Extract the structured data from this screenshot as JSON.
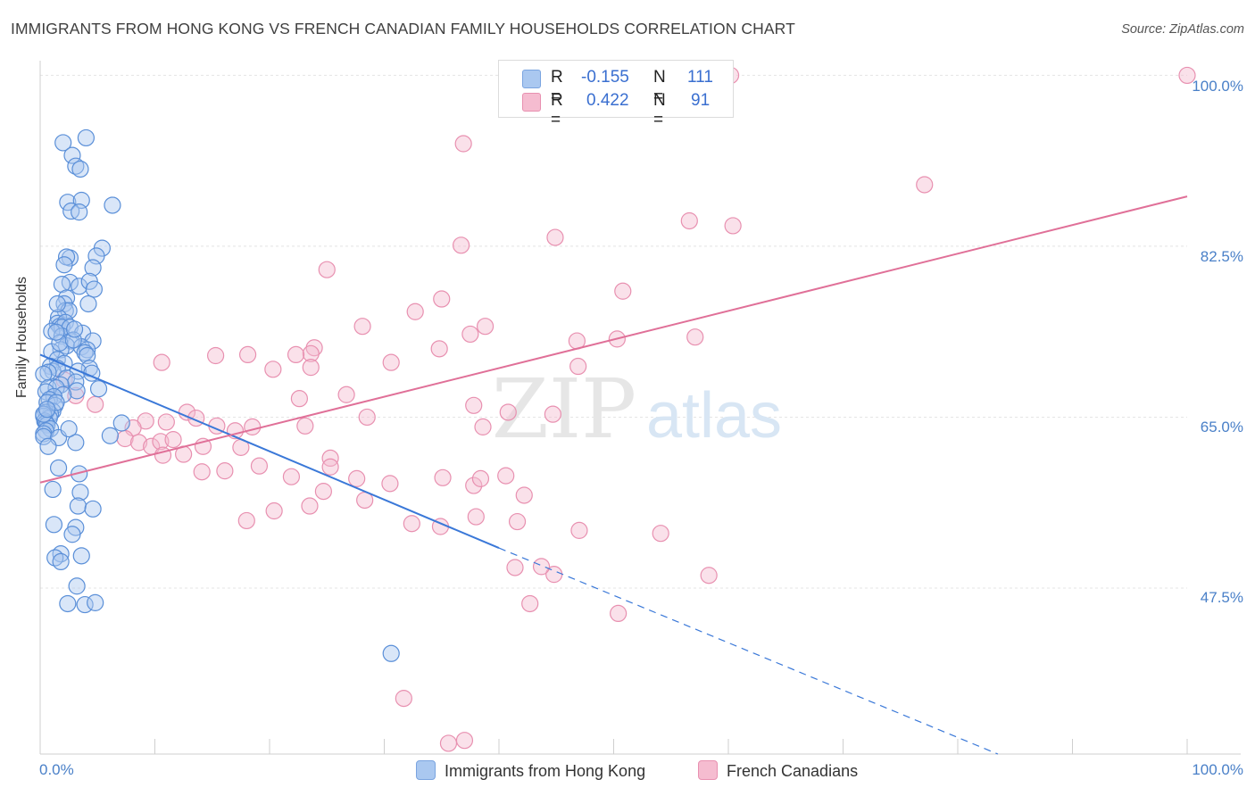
{
  "title": "IMMIGRANTS FROM HONG KONG VS FRENCH CANADIAN FAMILY HOUSEHOLDS CORRELATION CHART",
  "source": "Source: ZipAtlas.com",
  "watermark": {
    "zip": "ZIP",
    "atlas": "atlas"
  },
  "legend": {
    "r_label": "R =",
    "n_label": "N =",
    "series1": {
      "r": "-0.155",
      "n": "111"
    },
    "series2": {
      "r": "0.422",
      "n": "91"
    }
  },
  "colors": {
    "blue_fill": "#aac8f0",
    "blue_stroke": "#5a8fd8",
    "blue_line": "#3a78d8",
    "pink_fill": "#f5bcd0",
    "pink_stroke": "#e890b0",
    "pink_line": "#e07098",
    "tick_text": "#4a80c8"
  },
  "chart_data": {
    "type": "scatter",
    "title": "IMMIGRANTS FROM HONG KONG VS FRENCH CANADIAN FAMILY HOUSEHOLDS CORRELATION CHART",
    "xlabel": "",
    "ylabel": "Family Households",
    "xlim": [
      0,
      100
    ],
    "ylim": [
      30.5,
      101.5
    ],
    "x_tick_labels": [
      "0.0%",
      "100.0%"
    ],
    "y_ticks": [
      47.5,
      65.0,
      82.5,
      100.0
    ],
    "y_tick_labels": [
      "47.5%",
      "65.0%",
      "82.5%",
      "100.0%"
    ],
    "grid": true,
    "legend_position": "bottom",
    "series": [
      {
        "name": "Immigrants from Hong Kong",
        "color": "#5a8fd8",
        "trend": {
          "x": [
            0,
            40
          ],
          "y": [
            71.4,
            51.6
          ],
          "dashed_to": [
            83.5,
            30.5
          ]
        },
        "points": [
          [
            4.0,
            93.6
          ],
          [
            2.0,
            93.1
          ],
          [
            2.8,
            91.8
          ],
          [
            3.1,
            90.7
          ],
          [
            3.5,
            90.4
          ],
          [
            6.3,
            86.7
          ],
          [
            2.4,
            87.0
          ],
          [
            3.6,
            87.2
          ],
          [
            2.7,
            86.1
          ],
          [
            3.4,
            86.0
          ],
          [
            5.4,
            82.3
          ],
          [
            2.6,
            81.3
          ],
          [
            2.3,
            81.4
          ],
          [
            4.9,
            81.5
          ],
          [
            2.1,
            80.6
          ],
          [
            4.6,
            80.3
          ],
          [
            2.6,
            78.8
          ],
          [
            3.4,
            78.4
          ],
          [
            4.3,
            78.9
          ],
          [
            1.9,
            78.6
          ],
          [
            4.7,
            78.1
          ],
          [
            2.3,
            77.2
          ],
          [
            2.1,
            76.6
          ],
          [
            4.2,
            76.6
          ],
          [
            2.2,
            75.9
          ],
          [
            2.5,
            75.9
          ],
          [
            1.6,
            75.2
          ],
          [
            1.5,
            74.6
          ],
          [
            1.7,
            74.3
          ],
          [
            2.2,
            74.7
          ],
          [
            1.9,
            74.2
          ],
          [
            2.6,
            74.2
          ],
          [
            1.0,
            73.8
          ],
          [
            3.7,
            73.6
          ],
          [
            1.9,
            73.3
          ],
          [
            2.7,
            72.8
          ],
          [
            4.6,
            72.8
          ],
          [
            2.3,
            72.3
          ],
          [
            1.8,
            71.9
          ],
          [
            3.6,
            72.2
          ],
          [
            4.1,
            71.9
          ],
          [
            1.0,
            71.7
          ],
          [
            3.9,
            71.6
          ],
          [
            4.1,
            71.3
          ],
          [
            1.5,
            70.9
          ],
          [
            2.1,
            70.5
          ],
          [
            0.9,
            70.2
          ],
          [
            4.3,
            70.0
          ],
          [
            1.1,
            69.7
          ],
          [
            1.5,
            70.0
          ],
          [
            0.7,
            69.6
          ],
          [
            0.3,
            69.4
          ],
          [
            3.3,
            69.7
          ],
          [
            2.3,
            69.0
          ],
          [
            4.5,
            69.5
          ],
          [
            3.1,
            68.6
          ],
          [
            1.8,
            68.3
          ],
          [
            0.7,
            68.0
          ],
          [
            1.4,
            68.0
          ],
          [
            0.5,
            67.6
          ],
          [
            3.2,
            67.7
          ],
          [
            5.1,
            67.9
          ],
          [
            2.0,
            67.3
          ],
          [
            1.2,
            67.1
          ],
          [
            0.8,
            66.8
          ],
          [
            0.6,
            66.5
          ],
          [
            1.3,
            66.2
          ],
          [
            1.1,
            65.6
          ],
          [
            0.9,
            65.3
          ],
          [
            0.5,
            65.5
          ],
          [
            0.3,
            65.1
          ],
          [
            0.8,
            64.9
          ],
          [
            0.4,
            64.6
          ],
          [
            0.5,
            64.4
          ],
          [
            0.6,
            64.2
          ],
          [
            0.9,
            63.8
          ],
          [
            0.5,
            63.6
          ],
          [
            0.3,
            63.3
          ],
          [
            0.3,
            63.0
          ],
          [
            1.6,
            62.9
          ],
          [
            6.1,
            63.1
          ],
          [
            3.1,
            62.4
          ],
          [
            0.7,
            62.0
          ],
          [
            1.6,
            59.8
          ],
          [
            3.4,
            59.2
          ],
          [
            1.1,
            57.6
          ],
          [
            3.5,
            57.3
          ],
          [
            3.3,
            55.9
          ],
          [
            4.6,
            55.6
          ],
          [
            1.2,
            54.0
          ],
          [
            3.1,
            53.7
          ],
          [
            2.8,
            53.0
          ],
          [
            1.8,
            51.0
          ],
          [
            1.3,
            50.6
          ],
          [
            3.6,
            50.8
          ],
          [
            1.8,
            50.2
          ],
          [
            3.2,
            47.7
          ],
          [
            3.9,
            45.8
          ],
          [
            2.4,
            45.9
          ],
          [
            4.8,
            46.0
          ],
          [
            7.1,
            64.4
          ],
          [
            0.3,
            65.3
          ],
          [
            1.4,
            66.5
          ],
          [
            0.6,
            65.8
          ],
          [
            2.5,
            63.8
          ],
          [
            1.7,
            72.6
          ],
          [
            2.9,
            72.9
          ],
          [
            1.4,
            73.7
          ],
          [
            1.5,
            76.6
          ],
          [
            30.6,
            40.8
          ],
          [
            3.0,
            74.0
          ]
        ]
      },
      {
        "name": "French Canadians",
        "color": "#e890b0",
        "trend": {
          "x": [
            0,
            100
          ],
          "y": [
            58.3,
            87.6
          ]
        },
        "points": [
          [
            47.7,
            100.0
          ],
          [
            60.2,
            100.0
          ],
          [
            100.0,
            100.0
          ],
          [
            36.9,
            93.0
          ],
          [
            77.1,
            88.8
          ],
          [
            56.6,
            85.1
          ],
          [
            60.4,
            84.6
          ],
          [
            44.9,
            83.4
          ],
          [
            36.7,
            82.6
          ],
          [
            25.0,
            80.1
          ],
          [
            50.8,
            77.9
          ],
          [
            35.0,
            77.1
          ],
          [
            32.7,
            75.8
          ],
          [
            28.1,
            74.3
          ],
          [
            38.8,
            74.3
          ],
          [
            37.5,
            73.5
          ],
          [
            50.3,
            73.0
          ],
          [
            46.8,
            72.8
          ],
          [
            57.1,
            73.2
          ],
          [
            34.8,
            72.0
          ],
          [
            23.9,
            72.1
          ],
          [
            23.6,
            71.5
          ],
          [
            22.3,
            71.4
          ],
          [
            15.3,
            71.3
          ],
          [
            18.1,
            71.4
          ],
          [
            10.6,
            70.6
          ],
          [
            23.6,
            70.1
          ],
          [
            30.6,
            70.6
          ],
          [
            46.9,
            70.2
          ],
          [
            20.3,
            69.9
          ],
          [
            37.8,
            66.2
          ],
          [
            26.7,
            67.3
          ],
          [
            22.6,
            66.9
          ],
          [
            40.8,
            65.5
          ],
          [
            23.1,
            64.1
          ],
          [
            28.5,
            65.0
          ],
          [
            38.6,
            64.0
          ],
          [
            15.4,
            64.1
          ],
          [
            44.7,
            65.3
          ],
          [
            12.8,
            65.5
          ],
          [
            13.6,
            64.9
          ],
          [
            11.0,
            64.5
          ],
          [
            18.5,
            64.0
          ],
          [
            9.2,
            64.6
          ],
          [
            8.1,
            63.9
          ],
          [
            7.4,
            62.8
          ],
          [
            8.6,
            62.4
          ],
          [
            9.7,
            62.0
          ],
          [
            10.5,
            62.5
          ],
          [
            11.6,
            62.7
          ],
          [
            14.2,
            62.0
          ],
          [
            17.0,
            63.6
          ],
          [
            12.5,
            61.2
          ],
          [
            10.7,
            61.1
          ],
          [
            17.5,
            61.9
          ],
          [
            19.1,
            60.0
          ],
          [
            25.3,
            60.8
          ],
          [
            25.3,
            59.9
          ],
          [
            14.1,
            59.4
          ],
          [
            16.1,
            59.5
          ],
          [
            21.9,
            58.9
          ],
          [
            27.6,
            58.7
          ],
          [
            30.5,
            58.2
          ],
          [
            35.1,
            58.8
          ],
          [
            37.8,
            58.0
          ],
          [
            38.4,
            58.7
          ],
          [
            24.7,
            57.4
          ],
          [
            28.3,
            56.5
          ],
          [
            40.6,
            59.0
          ],
          [
            42.2,
            57.0
          ],
          [
            20.4,
            55.4
          ],
          [
            18.0,
            54.4
          ],
          [
            23.5,
            55.9
          ],
          [
            32.4,
            54.1
          ],
          [
            34.9,
            53.8
          ],
          [
            38.0,
            54.8
          ],
          [
            41.6,
            54.3
          ],
          [
            44.8,
            48.9
          ],
          [
            43.7,
            49.7
          ],
          [
            41.4,
            49.6
          ],
          [
            47.0,
            53.4
          ],
          [
            54.1,
            53.1
          ],
          [
            58.3,
            48.8
          ],
          [
            42.7,
            45.9
          ],
          [
            50.4,
            44.9
          ],
          [
            31.7,
            36.2
          ],
          [
            37.0,
            31.9
          ],
          [
            35.6,
            31.6
          ],
          [
            3.1,
            67.2
          ],
          [
            2.1,
            68.8
          ],
          [
            4.8,
            66.3
          ]
        ]
      }
    ]
  }
}
